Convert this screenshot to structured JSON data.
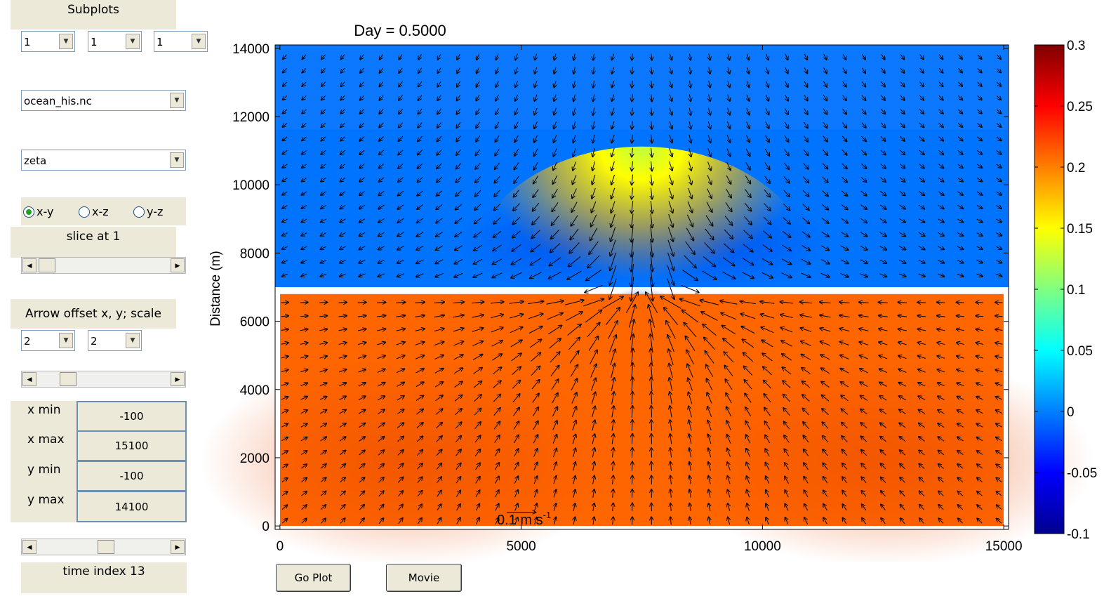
{
  "controls": {
    "subplots_label": "Subplots",
    "subplot_selects": [
      "1",
      "1",
      "1"
    ],
    "file_select": "ocean_his.nc",
    "variable_select": "zeta",
    "orientation_options": [
      {
        "label": "x-y",
        "selected": true
      },
      {
        "label": "x-z",
        "selected": false
      },
      {
        "label": "y-z",
        "selected": false
      }
    ],
    "slice_label": "slice at 1",
    "slice_slider_position": 0.06,
    "arrow_label": "Arrow offset x, y; scale",
    "arrow_offsets": [
      "2",
      "2"
    ],
    "arrow_scale_slider_position": 0.2,
    "limits": [
      {
        "label": "x min",
        "value": "-100"
      },
      {
        "label": "x max",
        "value": "15100"
      },
      {
        "label": "y min",
        "value": "-100"
      },
      {
        "label": "y max",
        "value": "14100"
      }
    ],
    "time_slider_position": 0.42,
    "time_label": "time index 13",
    "go_plot_button": "Go Plot",
    "movie_button": "Movie"
  },
  "chart_data": {
    "type": "heatmap",
    "title": "Day = 0.5000",
    "xlabel": "",
    "ylabel": "Distance (m)",
    "xlim": [
      -100,
      15100
    ],
    "ylim": [
      -100,
      14100
    ],
    "xticks": [
      0,
      5000,
      10000,
      15000
    ],
    "yticks": [
      0,
      2000,
      4000,
      6000,
      8000,
      10000,
      12000,
      14000
    ],
    "wall_y": [
      6800,
      7000
    ],
    "gap_x": [
      6250,
      8750
    ],
    "lower_basin_extent": {
      "x": [
        0,
        15000
      ],
      "y": [
        0,
        6800
      ]
    },
    "upper_basin_extent": {
      "x": [
        -100,
        15100
      ],
      "y": [
        7000,
        14100
      ]
    },
    "zeta_upper_basin_approx": -0.005,
    "zeta_lower_basin_approx": 0.21,
    "zeta_near_gap_approx": 0.12,
    "vector_scale_label": "0.1 m s",
    "vector_scale_exponent": "-1",
    "colorbar": {
      "ticks": [
        0.3,
        0.25,
        0.2,
        0.15,
        0.1,
        0.05,
        0,
        -0.05,
        -0.1
      ],
      "tick_labels": [
        "0.3",
        "0.25",
        "0.2",
        "0.15",
        "0.1",
        "0.05",
        "0",
        "-0.05",
        "-0.1"
      ],
      "range": [
        -0.1,
        0.3
      ],
      "colormap": "jet"
    }
  }
}
